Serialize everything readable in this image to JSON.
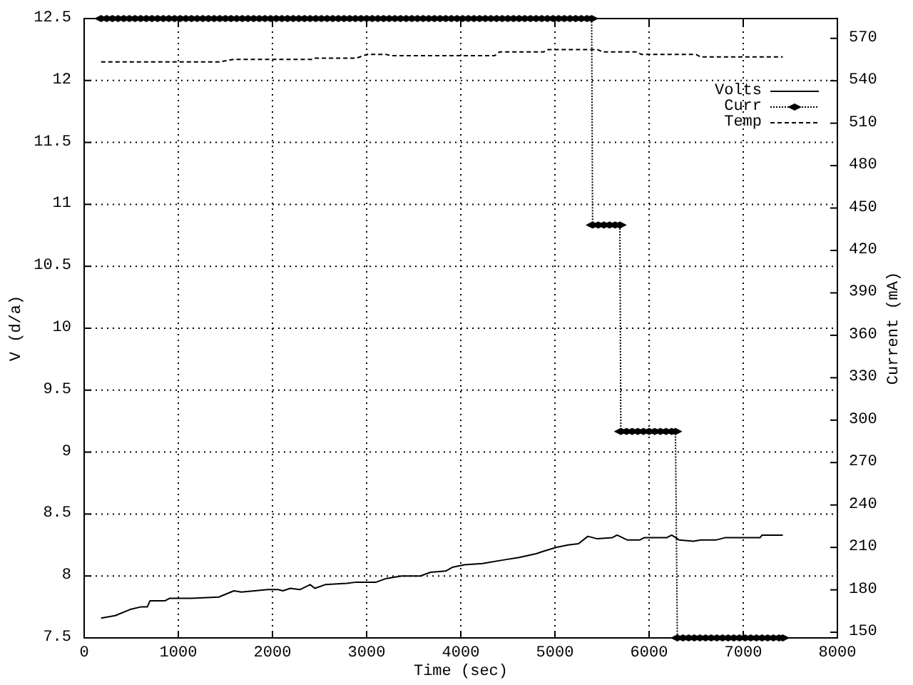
{
  "chart_data": {
    "type": "line",
    "xlabel": "Time (sec)",
    "ylabel": "V (d/a)",
    "y2label": "Current (mA)",
    "xlim": [
      0,
      8000
    ],
    "xticks": [
      0,
      1000,
      2000,
      3000,
      4000,
      5000,
      6000,
      7000,
      8000
    ],
    "ylim": [
      7.5,
      12.5
    ],
    "yticks": [
      7.5,
      8,
      8.5,
      9,
      9.5,
      10,
      10.5,
      11,
      11.5,
      12,
      12.5
    ],
    "y2lim": [
      146,
      584
    ],
    "y2ticks": [
      150,
      180,
      210,
      240,
      270,
      300,
      330,
      360,
      390,
      420,
      450,
      480,
      510,
      540,
      570
    ],
    "grid": true,
    "legend": "top right",
    "series": [
      {
        "name": "Volts",
        "color": "#000000",
        "line_style": "solid",
        "x": [
          180,
          330,
          490,
          600,
          670,
          700,
          860,
          910,
          1140,
          1430,
          1590,
          1670,
          1950,
          2060,
          2110,
          2190,
          2290,
          2400,
          2450,
          2560,
          2790,
          2890,
          3100,
          3210,
          3370,
          3570,
          3680,
          3840,
          3910,
          4040,
          4230,
          4460,
          4620,
          4800,
          4880,
          5010,
          5140,
          5250,
          5350,
          5450,
          5610,
          5660,
          5770,
          5900,
          5950,
          6190,
          6240,
          6320,
          6470,
          6550,
          6710,
          6810,
          7180,
          7200,
          7420
        ],
        "values": [
          7.66,
          7.68,
          7.73,
          7.75,
          7.75,
          7.8,
          7.8,
          7.82,
          7.82,
          7.83,
          7.88,
          7.87,
          7.89,
          7.89,
          7.88,
          7.9,
          7.89,
          7.93,
          7.9,
          7.93,
          7.94,
          7.95,
          7.95,
          7.98,
          8,
          8,
          8.03,
          8.04,
          8.07,
          8.09,
          8.1,
          8.13,
          8.15,
          8.18,
          8.2,
          8.23,
          8.25,
          8.26,
          8.32,
          8.3,
          8.31,
          8.33,
          8.29,
          8.29,
          8.31,
          8.31,
          8.33,
          8.29,
          8.28,
          8.29,
          8.29,
          8.31,
          8.31,
          8.33,
          8.33
        ]
      },
      {
        "name": "Curr",
        "color": "#000000",
        "axis": "y2",
        "line_style": "dotted",
        "marker": "diamond",
        "x": [
          180,
          240,
          300,
          360,
          420,
          480,
          540,
          600,
          660,
          720,
          780,
          840,
          900,
          960,
          1020,
          1080,
          1140,
          1200,
          1260,
          1320,
          1380,
          1440,
          1500,
          1560,
          1620,
          1680,
          1740,
          1800,
          1860,
          1920,
          1980,
          2040,
          2100,
          2160,
          2220,
          2280,
          2340,
          2400,
          2460,
          2520,
          2580,
          2640,
          2700,
          2760,
          2820,
          2880,
          2940,
          3000,
          3060,
          3120,
          3180,
          3240,
          3300,
          3360,
          3420,
          3480,
          3540,
          3600,
          3660,
          3720,
          3780,
          3840,
          3900,
          3960,
          4020,
          4080,
          4140,
          4200,
          4260,
          4320,
          4380,
          4440,
          4500,
          4560,
          4620,
          4680,
          4740,
          4800,
          4860,
          4920,
          4980,
          5040,
          5100,
          5160,
          5220,
          5280,
          5340,
          5390,
          5400,
          5460,
          5520,
          5580,
          5640,
          5690,
          5700,
          5760,
          5820,
          5880,
          5940,
          6000,
          6060,
          6120,
          6180,
          6240,
          6280,
          6300,
          6360,
          6420,
          6480,
          6540,
          6600,
          6660,
          6720,
          6780,
          6840,
          6900,
          6960,
          7020,
          7080,
          7140,
          7200,
          7260,
          7320,
          7380,
          7420
        ],
        "values": [
          584,
          584,
          584,
          584,
          584,
          584,
          584,
          584,
          584,
          584,
          584,
          584,
          584,
          584,
          584,
          584,
          584,
          584,
          584,
          584,
          584,
          584,
          584,
          584,
          584,
          584,
          584,
          584,
          584,
          584,
          584,
          584,
          584,
          584,
          584,
          584,
          584,
          584,
          584,
          584,
          584,
          584,
          584,
          584,
          584,
          584,
          584,
          584,
          584,
          584,
          584,
          584,
          584,
          584,
          584,
          584,
          584,
          584,
          584,
          584,
          584,
          584,
          584,
          584,
          584,
          584,
          584,
          584,
          584,
          584,
          584,
          584,
          584,
          584,
          584,
          584,
          584,
          584,
          584,
          584,
          584,
          584,
          584,
          584,
          584,
          584,
          584,
          584,
          438,
          438,
          438,
          438,
          438,
          438,
          292,
          292,
          292,
          292,
          292,
          292,
          292,
          292,
          292,
          292,
          292,
          146,
          146,
          146,
          146,
          146,
          146,
          146,
          146,
          146,
          146,
          146,
          146,
          146,
          146,
          146,
          146,
          146,
          146,
          146,
          146
        ]
      },
      {
        "name": "Temp",
        "color": "#000000",
        "line_style": "dashed",
        "x": [
          180,
          1430,
          1590,
          2420,
          2450,
          2890,
          3000,
          3210,
          3260,
          4360,
          4410,
          4880,
          4930,
          5450,
          5510,
          5870,
          5920,
          6500,
          6550,
          7420
        ],
        "values": [
          12.15,
          12.15,
          12.17,
          12.17,
          12.18,
          12.18,
          12.21,
          12.21,
          12.2,
          12.2,
          12.23,
          12.23,
          12.25,
          12.25,
          12.23,
          12.23,
          12.21,
          12.21,
          12.19,
          12.19
        ]
      }
    ]
  }
}
